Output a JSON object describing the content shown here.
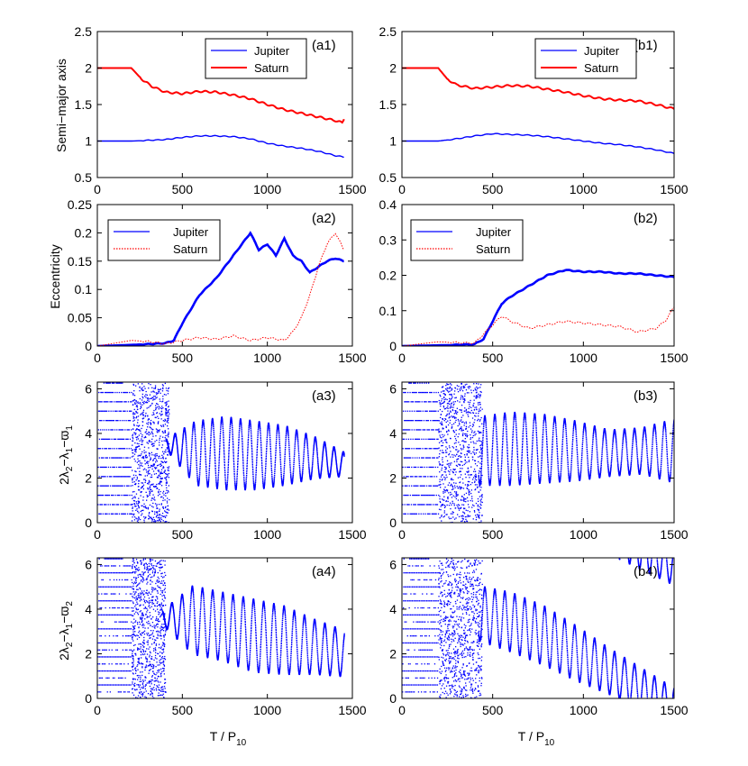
{
  "figure": {
    "xlabel_main": "T / P",
    "xlabel_sub": "10",
    "ylabel_row1": "Semi−major axis",
    "ylabel_row2": "Eccentricity",
    "ylabel_row3_parts": [
      "2λ",
      "2",
      "−λ",
      "1",
      "−ϖ",
      "1"
    ],
    "ylabel_row4_parts": [
      "2λ",
      "2",
      "−λ",
      "1",
      "−ϖ",
      "2"
    ]
  },
  "colors": {
    "jupiter": "#0000ff",
    "saturn": "#ff0000",
    "axis": "#000000"
  },
  "chart_data": [
    {
      "id": "a1",
      "panel_label": "(a1)",
      "type": "line",
      "xlim": [
        0,
        1500
      ],
      "ylim": [
        0.5,
        2.5
      ],
      "xticks": [
        "0",
        "500",
        "1000",
        "1500"
      ],
      "yticks": [
        "0.5",
        "1",
        "1.5",
        "2",
        "2.5"
      ],
      "ytick_values": [
        0.5,
        1,
        1.5,
        2,
        2.5
      ],
      "legend": [
        "Jupiter",
        "Saturn"
      ],
      "series": [
        {
          "name": "Jupiter",
          "x": [
            0,
            200,
            400,
            500,
            600,
            700,
            800,
            900,
            1000,
            1100,
            1200,
            1300,
            1400,
            1450
          ],
          "values": [
            1.0,
            1.0,
            1.02,
            1.05,
            1.07,
            1.07,
            1.06,
            1.03,
            0.97,
            0.93,
            0.9,
            0.86,
            0.8,
            0.78
          ]
        },
        {
          "name": "Saturn",
          "x": [
            0,
            200,
            260,
            320,
            400,
            500,
            600,
            700,
            800,
            900,
            1000,
            1100,
            1200,
            1300,
            1400,
            1440,
            1450
          ],
          "values": [
            2.0,
            2.0,
            1.85,
            1.75,
            1.67,
            1.65,
            1.68,
            1.67,
            1.63,
            1.58,
            1.5,
            1.43,
            1.38,
            1.33,
            1.28,
            1.25,
            1.3
          ]
        }
      ]
    },
    {
      "id": "b1",
      "panel_label": "(b1)",
      "type": "line",
      "xlim": [
        0,
        1500
      ],
      "ylim": [
        0.5,
        2.5
      ],
      "xticks": [
        "0",
        "500",
        "1000",
        "1500"
      ],
      "yticks": [
        "0.5",
        "1",
        "1.5",
        "2",
        "2.5"
      ],
      "ytick_values": [
        0.5,
        1,
        1.5,
        2,
        2.5
      ],
      "legend": [
        "Jupiter",
        "Saturn"
      ],
      "series": [
        {
          "name": "Jupiter",
          "x": [
            0,
            200,
            300,
            400,
            500,
            600,
            700,
            800,
            900,
            1000,
            1100,
            1200,
            1300,
            1400,
            1500
          ],
          "values": [
            1.0,
            1.0,
            1.03,
            1.07,
            1.1,
            1.09,
            1.08,
            1.06,
            1.03,
            1.0,
            0.97,
            0.95,
            0.92,
            0.88,
            0.83
          ]
        },
        {
          "name": "Saturn",
          "x": [
            0,
            200,
            250,
            300,
            400,
            500,
            600,
            700,
            800,
            900,
            1000,
            1100,
            1200,
            1300,
            1400,
            1500
          ],
          "values": [
            2.0,
            2.0,
            1.85,
            1.77,
            1.72,
            1.74,
            1.76,
            1.75,
            1.71,
            1.67,
            1.62,
            1.58,
            1.56,
            1.55,
            1.5,
            1.44
          ]
        }
      ]
    },
    {
      "id": "a2",
      "panel_label": "(a2)",
      "type": "line",
      "xlim": [
        0,
        1500
      ],
      "ylim": [
        0,
        0.25
      ],
      "xticks": [
        "0",
        "500",
        "1000",
        "1500"
      ],
      "yticks": [
        "0",
        "0.05",
        "0.1",
        "0.15",
        "0.2",
        "0.25"
      ],
      "ytick_values": [
        0,
        0.05,
        0.1,
        0.15,
        0.2,
        0.25
      ],
      "legend": [
        "Jupiter",
        "Saturn"
      ],
      "series": [
        {
          "name": "Jupiter",
          "x": [
            0,
            200,
            400,
            450,
            500,
            600,
            700,
            800,
            900,
            950,
            1000,
            1050,
            1100,
            1150,
            1200,
            1250,
            1300,
            1350,
            1400,
            1450
          ],
          "values": [
            0,
            0.002,
            0.005,
            0.01,
            0.04,
            0.09,
            0.12,
            0.16,
            0.2,
            0.17,
            0.18,
            0.16,
            0.19,
            0.16,
            0.15,
            0.13,
            0.14,
            0.15,
            0.155,
            0.15
          ]
        },
        {
          "name": "Saturn",
          "x": [
            0,
            200,
            300,
            400,
            500,
            600,
            700,
            800,
            900,
            1000,
            1100,
            1150,
            1200,
            1250,
            1300,
            1350,
            1400,
            1450
          ],
          "values": [
            0,
            0.01,
            0.008,
            0.004,
            0.01,
            0.015,
            0.012,
            0.018,
            0.01,
            0.015,
            0.01,
            0.025,
            0.05,
            0.09,
            0.14,
            0.18,
            0.2,
            0.17
          ]
        }
      ]
    },
    {
      "id": "b2",
      "panel_label": "(b2)",
      "type": "line",
      "xlim": [
        0,
        1500
      ],
      "ylim": [
        0,
        0.4
      ],
      "xticks": [
        "0",
        "500",
        "1000",
        "1500"
      ],
      "yticks": [
        "0",
        "0.1",
        "0.2",
        "0.3",
        "0.4"
      ],
      "ytick_values": [
        0,
        0.1,
        0.2,
        0.3,
        0.4
      ],
      "legend": [
        "Jupiter",
        "Saturn"
      ],
      "series": [
        {
          "name": "Jupiter",
          "x": [
            0,
            200,
            400,
            450,
            500,
            550,
            600,
            700,
            800,
            900,
            1000,
            1100,
            1200,
            1300,
            1400,
            1500
          ],
          "values": [
            0,
            0.002,
            0.005,
            0.02,
            0.07,
            0.12,
            0.14,
            0.17,
            0.2,
            0.215,
            0.21,
            0.21,
            0.205,
            0.205,
            0.2,
            0.195
          ]
        },
        {
          "name": "Saturn",
          "x": [
            0,
            200,
            400,
            500,
            550,
            600,
            700,
            800,
            900,
            1000,
            1100,
            1200,
            1300,
            1400,
            1450,
            1500
          ],
          "values": [
            0,
            0.012,
            0.008,
            0.06,
            0.085,
            0.07,
            0.05,
            0.06,
            0.07,
            0.065,
            0.06,
            0.055,
            0.04,
            0.05,
            0.07,
            0.11
          ]
        }
      ]
    },
    {
      "id": "a3",
      "panel_label": "(a3)",
      "type": "scatter",
      "xlim": [
        0,
        1500
      ],
      "ylim": [
        0,
        6.3
      ],
      "xticks": [
        "0",
        "500",
        "1000",
        "1500"
      ],
      "yticks": [
        "0",
        "2",
        "4",
        "6"
      ],
      "ytick_values": [
        0,
        2,
        4,
        6
      ],
      "phase": {
        "circulation_end": 200,
        "transition_end": 420,
        "end": 1450,
        "center_values": [
          3.5,
          3.1,
          3.1,
          3.0,
          3.0,
          2.9,
          2.6
        ],
        "amplitude_values": [
          0.2,
          1.4,
          1.6,
          1.5,
          1.3,
          0.9,
          0.5
        ],
        "period": 55
      }
    },
    {
      "id": "b3",
      "panel_label": "(b3)",
      "type": "scatter",
      "xlim": [
        0,
        1500
      ],
      "ylim": [
        0,
        6.3
      ],
      "xticks": [
        "0",
        "500",
        "1000",
        "1500"
      ],
      "yticks": [
        "0",
        "2",
        "4",
        "6"
      ],
      "ytick_values": [
        0,
        2,
        4,
        6
      ],
      "phase": {
        "circulation_end": 200,
        "transition_end": 440,
        "end": 1500,
        "center_values": [
          3.2,
          3.3,
          3.3,
          3.2,
          3.1,
          3.2,
          3.2
        ],
        "amplitude_values": [
          1.5,
          1.6,
          1.5,
          1.3,
          1.0,
          1.0,
          1.4
        ],
        "period": 55
      }
    },
    {
      "id": "a4",
      "panel_label": "(a4)",
      "type": "scatter",
      "xlim": [
        0,
        1500
      ],
      "ylim": [
        0,
        6.3
      ],
      "xticks": [
        "0",
        "500",
        "1000",
        "1500"
      ],
      "yticks": [
        "0",
        "2",
        "4",
        "6"
      ],
      "ytick_values": [
        0,
        2,
        4,
        6
      ],
      "phase": {
        "circulation_end": 200,
        "transition_end": 400,
        "end": 1450,
        "center_values": [
          3.6,
          3.5,
          3.2,
          2.8,
          2.6,
          2.3,
          2.0
        ],
        "amplitude_values": [
          0.3,
          1.5,
          1.5,
          1.6,
          1.5,
          1.2,
          1.0
        ],
        "period": 60,
        "drift": 0
      }
    },
    {
      "id": "b4",
      "panel_label": "(b4)",
      "type": "scatter",
      "xlim": [
        0,
        1500
      ],
      "ylim": [
        0,
        6.3
      ],
      "xticks": [
        "0",
        "500",
        "1000",
        "1500"
      ],
      "yticks": [
        "0",
        "2",
        "4",
        "6"
      ],
      "ytick_values": [
        0,
        2,
        4,
        6
      ],
      "phase": {
        "circulation_end": 200,
        "transition_end": 440,
        "end": 1500,
        "center_values": [
          3.8,
          3.4,
          2.8,
          2.0,
          1.2,
          0.4,
          -0.4
        ],
        "amplitude_values": [
          1.2,
          1.3,
          1.3,
          1.2,
          1.0,
          0.9,
          0.8
        ],
        "period": 55,
        "wrap": true
      }
    }
  ]
}
